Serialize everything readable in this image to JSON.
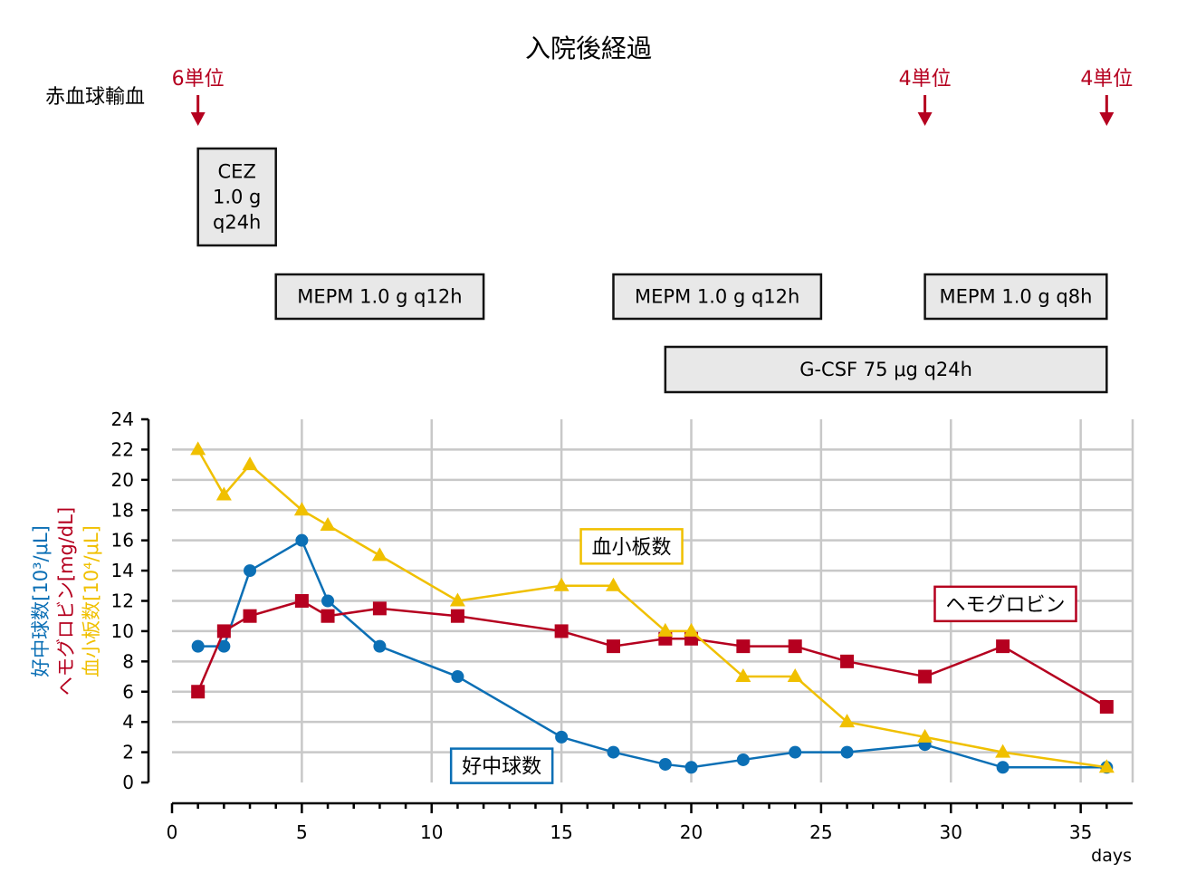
{
  "title": "入院後経過",
  "colors": {
    "neutrophils": "#0b6fb5",
    "hemoglobin": "#b5001f",
    "platelets": "#f0c000",
    "grid": "#c8c8c8",
    "treatment_fill": "#e8e8e8",
    "annotation_red": "#b5001f"
  },
  "transfusion": {
    "label": "赤血球輸血",
    "events": [
      {
        "day": 1,
        "label": "6単位"
      },
      {
        "day": 29,
        "label": "4単位"
      },
      {
        "day": 36,
        "label": "4単位"
      }
    ]
  },
  "treatments": [
    {
      "start": 1,
      "end": 4,
      "row": 0,
      "lines": [
        "CEZ",
        "1.0 g",
        "q24h"
      ]
    },
    {
      "start": 4,
      "end": 12,
      "row": 1,
      "lines": [
        "MEPM 1.0 g q12h"
      ]
    },
    {
      "start": 17,
      "end": 25,
      "row": 1,
      "lines": [
        "MEPM 1.0 g q12h"
      ]
    },
    {
      "start": 29,
      "end": 36,
      "row": 1,
      "lines": [
        "MEPM 1.0 g q8h"
      ]
    },
    {
      "start": 19,
      "end": 36,
      "row": 2,
      "lines": [
        "G-CSF 75 μg q24h"
      ]
    }
  ],
  "chart_data": {
    "type": "line",
    "xlabel": "days",
    "ylabel_lines": [
      "好中球数[10³/μL]",
      "ヘモグロビン[mg/dL]",
      "血小板数[10⁴/μL]"
    ],
    "xlim": [
      0,
      37
    ],
    "ylim": [
      0,
      24
    ],
    "xticks": [
      0,
      5,
      10,
      15,
      20,
      25,
      30,
      35
    ],
    "yticks": [
      0,
      2,
      4,
      6,
      8,
      10,
      12,
      14,
      16,
      18,
      20,
      22,
      24
    ],
    "grid": true,
    "series": [
      {
        "name": "好中球数",
        "marker": "circle",
        "color": "#0b6fb5",
        "points": [
          [
            1,
            9
          ],
          [
            2,
            9
          ],
          [
            3,
            14
          ],
          [
            5,
            16
          ],
          [
            6,
            12
          ],
          [
            8,
            9
          ],
          [
            11,
            7
          ],
          [
            15,
            3
          ],
          [
            17,
            2
          ],
          [
            19,
            1.2
          ],
          [
            20,
            1
          ],
          [
            22,
            1.5
          ],
          [
            24,
            2
          ],
          [
            26,
            2
          ],
          [
            29,
            2.5
          ],
          [
            32,
            1
          ],
          [
            36,
            1
          ]
        ]
      },
      {
        "name": "ヘモグロビン",
        "marker": "square",
        "color": "#b5001f",
        "points": [
          [
            1,
            6
          ],
          [
            2,
            10
          ],
          [
            3,
            11
          ],
          [
            5,
            12
          ],
          [
            6,
            11
          ],
          [
            8,
            11.5
          ],
          [
            11,
            11
          ],
          [
            15,
            10
          ],
          [
            17,
            9
          ],
          [
            19,
            9.5
          ],
          [
            20,
            9.5
          ],
          [
            22,
            9
          ],
          [
            24,
            9
          ],
          [
            26,
            8
          ],
          [
            29,
            7
          ],
          [
            32,
            9
          ],
          [
            36,
            5
          ]
        ]
      },
      {
        "name": "血小板数",
        "marker": "triangle",
        "color": "#f0c000",
        "points": [
          [
            1,
            22
          ],
          [
            2,
            19
          ],
          [
            3,
            21
          ],
          [
            5,
            18
          ],
          [
            6,
            17
          ],
          [
            8,
            15
          ],
          [
            11,
            12
          ],
          [
            15,
            13
          ],
          [
            17,
            13
          ],
          [
            19,
            10
          ],
          [
            20,
            10
          ],
          [
            22,
            7
          ],
          [
            24,
            7
          ],
          [
            26,
            4
          ],
          [
            29,
            3
          ],
          [
            32,
            2
          ],
          [
            36,
            1
          ]
        ]
      }
    ],
    "series_labels": [
      {
        "text": "血小板数",
        "series": 2,
        "x": 17.7,
        "y": 15.6
      },
      {
        "text": "ヘモグロビン",
        "series": 1,
        "x": 32.1,
        "y": 11.8
      },
      {
        "text": "好中球数",
        "series": 0,
        "x": 12.7,
        "y": 1.1
      }
    ]
  }
}
